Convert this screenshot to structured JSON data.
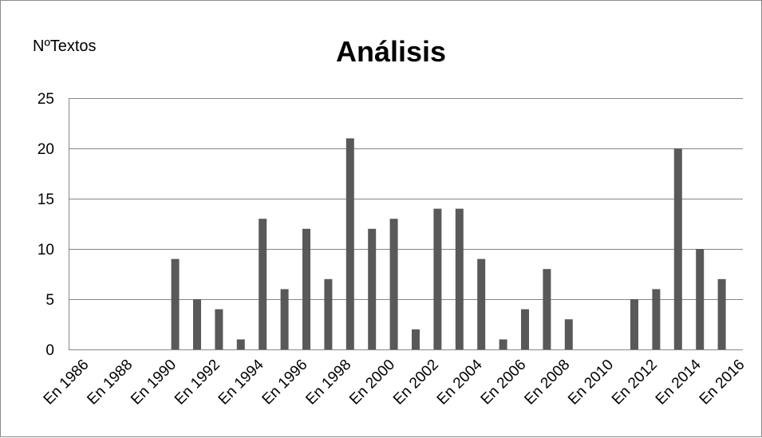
{
  "chart_data": {
    "type": "bar",
    "title": "Análisis",
    "xlabel": "",
    "ylabel": "NºTextos",
    "ylim": [
      0,
      25
    ],
    "yticks": [
      0,
      5,
      10,
      15,
      20,
      25
    ],
    "grid": true,
    "legend": "none",
    "colors": {
      "bar": "#595959",
      "grid": "#868686",
      "axis": "#868686"
    },
    "categories": [
      "En 1986",
      "En 1987",
      "En 1988",
      "En 1989",
      "En 1990",
      "En 1991",
      "En 1992",
      "En 1993",
      "En 1994",
      "En 1995",
      "En 1996",
      "En 1997",
      "En 1998",
      "En 1999",
      "En 2000",
      "En 2001",
      "En 2002",
      "En 2003",
      "En 2004",
      "En 2005",
      "En 2006",
      "En 2007",
      "En 2008",
      "En 2009",
      "En 2010",
      "En 2011",
      "En 2012",
      "En 2013",
      "En 2014",
      "En 2015",
      "En 2016"
    ],
    "tick_labels": [
      "En 1986",
      "En 1988",
      "En 1990",
      "En 1992",
      "En 1994",
      "En 1996",
      "En 1998",
      "En 2000",
      "En 2002",
      "En 2004",
      "En 2006",
      "En 2008",
      "En 2010",
      "En 2012",
      "En 2014",
      "En 2016"
    ],
    "values": [
      0,
      0,
      0,
      0,
      9,
      5,
      4,
      1,
      13,
      6,
      12,
      7,
      21,
      12,
      13,
      2,
      14,
      14,
      9,
      1,
      4,
      8,
      3,
      0,
      0,
      5,
      6,
      20,
      10,
      7,
      0
    ]
  }
}
